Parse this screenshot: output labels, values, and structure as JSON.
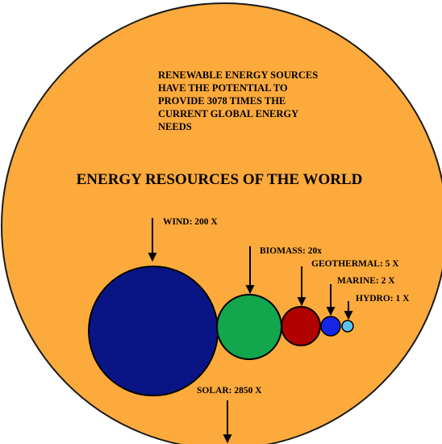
{
  "intro_lines": [
    "RENEWABLE ENERGY SOURCES",
    "HAVE THE POTENTIAL TO",
    "PROVIDE 3078 TIMES THE",
    "CURRENT GLOBAL ENERGY",
    "NEEDS"
  ],
  "title": "ENERGY RESOURCES OF THE WORLD",
  "colors": {
    "background_disc": "#fdaa3c",
    "disc_outline": "#1a1a1a",
    "wind": "#0a1585",
    "biomass": "#12a64d",
    "geothermal": "#b00000",
    "marine": "#1624e6",
    "hydro": "#5bc2ee"
  },
  "resources": [
    {
      "id": "wind",
      "label": "WIND: 200 X",
      "multiple": 200
    },
    {
      "id": "biomass",
      "label": "BIOMASS: 20x",
      "multiple": 20
    },
    {
      "id": "geothermal",
      "label": "GEOTHERMAL: 5 X",
      "multiple": 5
    },
    {
      "id": "marine",
      "label": "MARINE: 2 X",
      "multiple": 2
    },
    {
      "id": "hydro",
      "label": "HYDRO: 1 X",
      "multiple": 1
    }
  ],
  "solar": {
    "label": "SOLAR: 2850 X",
    "multiple": 2850
  }
}
